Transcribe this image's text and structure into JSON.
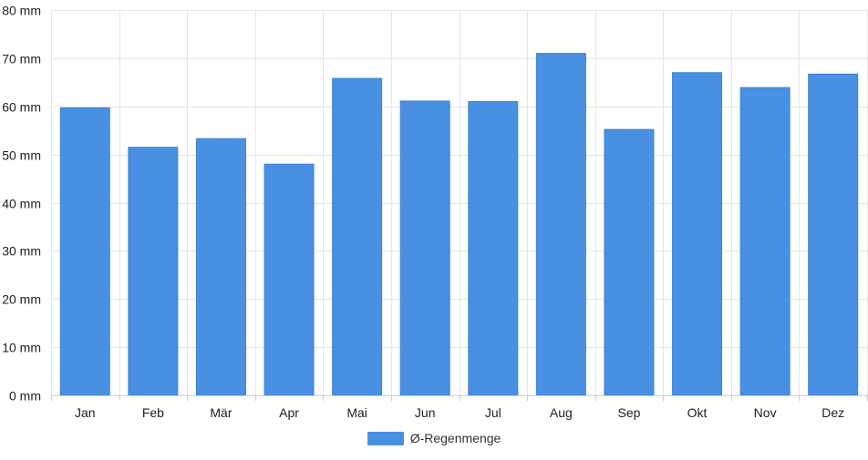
{
  "chart_data": {
    "type": "bar",
    "categories": [
      "Jan",
      "Feb",
      "Mär",
      "Apr",
      "Mai",
      "Jun",
      "Jul",
      "Aug",
      "Sep",
      "Okt",
      "Nov",
      "Dez"
    ],
    "series": [
      {
        "name": "Ø-Regenmenge",
        "values": [
          59.7,
          51.5,
          53.3,
          48.0,
          65.8,
          61.1,
          61.0,
          71.0,
          55.2,
          67.0,
          63.9,
          66.7
        ]
      }
    ],
    "yunit": "mm",
    "ylim": [
      0,
      80
    ],
    "yticks": [
      0,
      10,
      20,
      30,
      40,
      50,
      60,
      70,
      80
    ],
    "grid": true,
    "legend_position": "bottom",
    "colors": {
      "bar": "#4a90e2",
      "grid": "#e6e6e6",
      "axis": "#cccccc"
    }
  }
}
